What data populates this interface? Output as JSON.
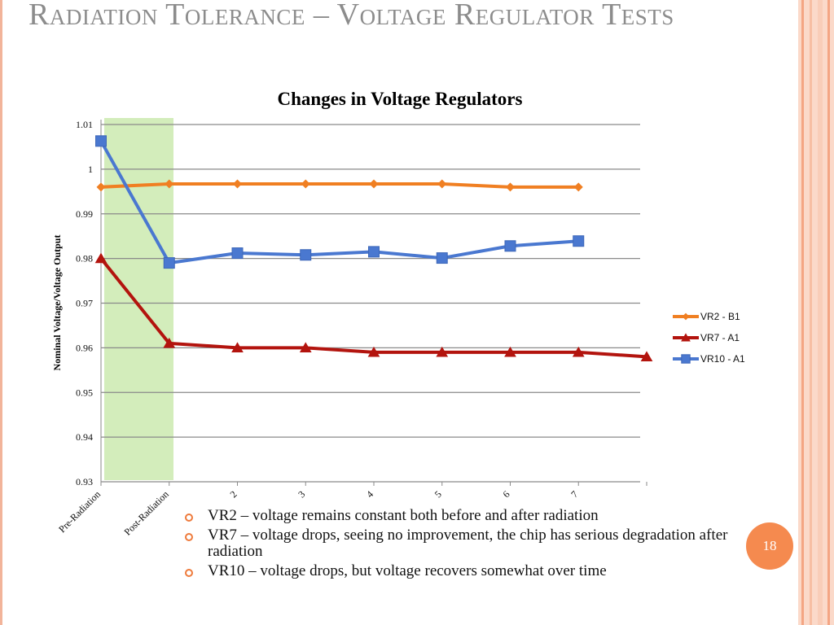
{
  "slide": {
    "title": "Radiation Tolerance – Voltage Regulator Tests",
    "page_number": "18",
    "bullets": [
      "VR2 – voltage remains constant both before and after radiation",
      "VR7 – voltage drops, seeing no improvement, the chip has serious degradation after radiation",
      "VR10 – voltage drops, but voltage recovers somewhat over time"
    ]
  },
  "colors": {
    "accent": "#f58a4f",
    "title_text": "#8c8c8c",
    "highlight_band": "#d3edbb"
  },
  "chart_data": {
    "type": "line",
    "title": "Changes in Voltage Regulators",
    "xlabel": "",
    "ylabel": "Nominal Voltage/Voltage Output",
    "categories": [
      "Pre-Radiation",
      "Post-Radiation",
      "2",
      "3",
      "4",
      "5",
      "6",
      "7",
      ""
    ],
    "ylim": [
      0.93,
      1.01
    ],
    "yticks": [
      "0.93",
      "0.94",
      "0.95",
      "0.96",
      "0.97",
      "0.98",
      "0.99",
      "1",
      "1.01"
    ],
    "grid": true,
    "legend_position": "right",
    "highlight_region": [
      "Pre-Radiation",
      "Post-Radiation"
    ],
    "series": [
      {
        "name": "VR2 - B1",
        "color": "#f07f22",
        "marker": "diamond",
        "values": [
          0.996,
          0.9967,
          0.9967,
          0.9967,
          0.9967,
          0.9967,
          0.996,
          0.996,
          null
        ]
      },
      {
        "name": "VR7 - A1",
        "color": "#b3140e",
        "marker": "triangle",
        "values": [
          0.98,
          0.961,
          0.96,
          0.96,
          0.959,
          0.959,
          0.959,
          0.959,
          0.958
        ]
      },
      {
        "name": "VR10 - A1",
        "color": "#4a78d0",
        "marker": "square",
        "values": [
          1.0063,
          0.979,
          0.9812,
          0.9808,
          0.9815,
          0.9801,
          0.9828,
          0.9839,
          null
        ]
      }
    ]
  }
}
